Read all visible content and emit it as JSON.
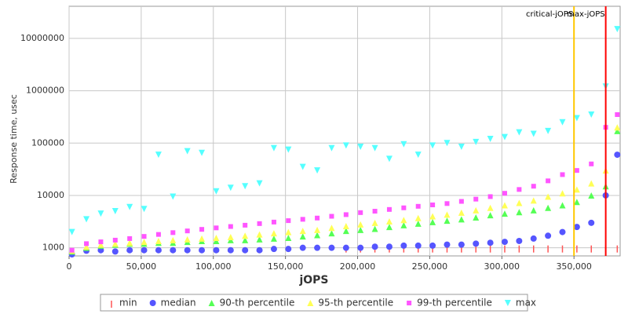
{
  "chart_data": {
    "type": "scatter",
    "x_label": "jOPS",
    "y_label": "Response time, usec",
    "log_y": true,
    "grid": true,
    "xlim": [
      0,
      382000
    ],
    "ylim": [
      700,
      41000000
    ],
    "xticks": [
      0,
      {
        "value": 50000,
        "label": "50,000"
      },
      {
        "value": 100000,
        "label": "100,000"
      },
      {
        "value": 150000,
        "label": "150,000"
      },
      {
        "value": 200000,
        "label": "200,000"
      },
      {
        "value": 250000,
        "label": "250,000"
      },
      {
        "value": 300000,
        "label": "300,000"
      },
      {
        "value": 350000,
        "label": "350,000"
      }
    ],
    "yticks": [
      1000,
      10000,
      100000,
      1000000,
      10000000
    ],
    "legend": "bottom",
    "annotations": [
      {
        "x": 350000,
        "label": "critical-jOPS",
        "color": "#ffc800"
      },
      {
        "x": 372000,
        "label": "max-jOPS",
        "color": "#ff0000"
      }
    ],
    "x": [
      2000,
      12000,
      22000,
      32000,
      42000,
      52000,
      62000,
      72000,
      82000,
      92000,
      102000,
      112000,
      122000,
      132000,
      142000,
      152000,
      162000,
      172000,
      182000,
      192000,
      202000,
      212000,
      222000,
      232000,
      242000,
      252000,
      262000,
      272000,
      282000,
      292000,
      302000,
      312000,
      322000,
      332000,
      342000,
      352000,
      362000,
      372000,
      380000
    ],
    "series": [
      {
        "name": "min",
        "color": "#ff5555",
        "marker": "tick",
        "values": [
          null,
          null,
          null,
          null,
          null,
          null,
          null,
          null,
          null,
          null,
          null,
          null,
          null,
          null,
          null,
          null,
          null,
          null,
          null,
          1000,
          1000,
          1000,
          1000,
          1000,
          1000,
          1000,
          1000,
          1000,
          1000,
          1000,
          1000,
          1000,
          1000,
          1000,
          1000,
          1000,
          1000,
          1000,
          1000
        ]
      },
      {
        "name": "median",
        "color": "#5555ff",
        "marker": "circle",
        "values": [
          750,
          880,
          900,
          850,
          900,
          900,
          900,
          900,
          900,
          900,
          900,
          900,
          900,
          900,
          950,
          950,
          1000,
          1000,
          1000,
          1000,
          1000,
          1050,
          1050,
          1100,
          1100,
          1100,
          1150,
          1150,
          1200,
          1250,
          1300,
          1350,
          1500,
          1700,
          2000,
          2500,
          3000,
          10000,
          60000
        ]
      },
      {
        "name": "90-th percentile",
        "color": "#55ff55",
        "marker": "triangle-up",
        "values": [
          850,
          1000,
          1100,
          1150,
          1200,
          1200,
          1250,
          1250,
          1300,
          1350,
          1350,
          1400,
          1400,
          1450,
          1500,
          1550,
          1650,
          1750,
          1900,
          2100,
          2200,
          2300,
          2500,
          2700,
          2900,
          3100,
          3300,
          3500,
          3800,
          4200,
          4500,
          4800,
          5200,
          5800,
          6500,
          7500,
          10000,
          15000,
          170000
        ]
      },
      {
        "name": "95-th percentile",
        "color": "#ffff55",
        "marker": "triangle-up",
        "values": [
          880,
          1050,
          1150,
          1200,
          1250,
          1300,
          1350,
          1400,
          1450,
          1500,
          1550,
          1600,
          1700,
          1800,
          1900,
          2000,
          2100,
          2200,
          2400,
          2600,
          2800,
          3000,
          3200,
          3400,
          3700,
          4000,
          4300,
          4700,
          5200,
          5800,
          6500,
          7200,
          8000,
          9500,
          11000,
          13000,
          17000,
          30000,
          200000
        ]
      },
      {
        "name": "99-th percentile",
        "color": "#ff55ff",
        "marker": "square",
        "values": [
          900,
          1200,
          1300,
          1400,
          1500,
          1650,
          1800,
          1950,
          2100,
          2250,
          2400,
          2550,
          2700,
          2900,
          3100,
          3300,
          3500,
          3700,
          4000,
          4300,
          4700,
          5000,
          5400,
          5800,
          6200,
          6600,
          7000,
          7700,
          8500,
          9500,
          11000,
          13000,
          15000,
          19000,
          25000,
          30000,
          40000,
          200000,
          350000
        ]
      },
      {
        "name": "max",
        "color": "#55ffff",
        "marker": "triangle-down",
        "values": [
          2000,
          3500,
          4500,
          5000,
          6000,
          5500,
          60000,
          9500,
          70000,
          65000,
          12000,
          14000,
          15000,
          17000,
          80000,
          75000,
          35000,
          30000,
          80000,
          90000,
          85000,
          80000,
          50000,
          95000,
          60000,
          90000,
          100000,
          85000,
          105000,
          120000,
          130000,
          160000,
          150000,
          170000,
          250000,
          300000,
          350000,
          1200000,
          15000000
        ]
      }
    ]
  }
}
